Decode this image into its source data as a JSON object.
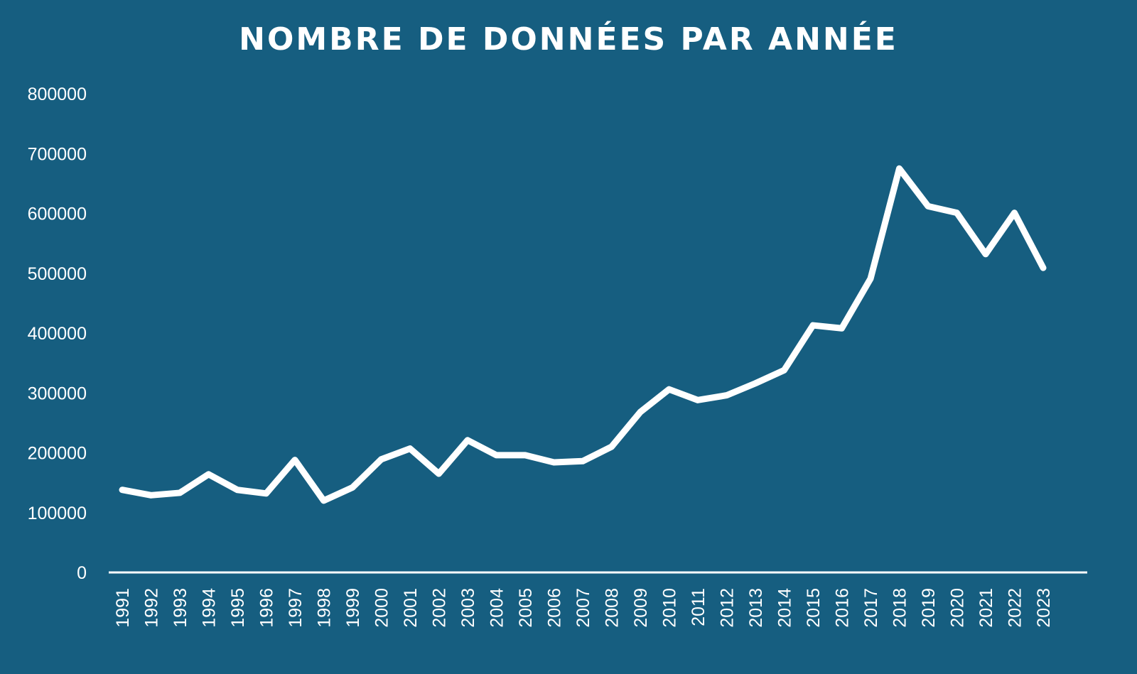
{
  "title": "NOMBRE DE DONNÉES PAR ANNÉE",
  "colors": {
    "background": "#165e80",
    "line": "#ffffff",
    "text": "#ffffff"
  },
  "chart_data": {
    "type": "line",
    "title": "NOMBRE DE DONNÉES PAR ANNÉE",
    "xlabel": "",
    "ylabel": "",
    "ylim": [
      0,
      800000
    ],
    "yticks": [
      0,
      100000,
      200000,
      300000,
      400000,
      500000,
      600000,
      700000,
      800000
    ],
    "ytick_labels": [
      "0",
      "100000",
      "200000",
      "300000",
      "400000",
      "500000",
      "600000",
      "700000",
      "800000"
    ],
    "grid": false,
    "legend": null,
    "drop_lines": true,
    "categories": [
      "1991",
      "1992",
      "1993",
      "1994",
      "1995",
      "1996",
      "1997",
      "1998",
      "1999",
      "2000",
      "2001",
      "2002",
      "2003",
      "2004",
      "2005",
      "2006",
      "2007",
      "2008",
      "2009",
      "2010",
      "2011",
      "2012",
      "2013",
      "2014",
      "2015",
      "2016",
      "2017",
      "2018",
      "2019",
      "2020",
      "2021",
      "2022",
      "2023"
    ],
    "series": [
      {
        "name": "Nombre de données",
        "values": [
          138000,
          129000,
          133000,
          164000,
          138000,
          132000,
          188000,
          120000,
          142000,
          189000,
          207000,
          165000,
          221000,
          196000,
          196000,
          184000,
          186000,
          210000,
          268000,
          306000,
          288000,
          296000,
          316000,
          338000,
          413000,
          408000,
          491000,
          675000,
          612000,
          601000,
          532000,
          601000,
          509000
        ]
      }
    ]
  }
}
